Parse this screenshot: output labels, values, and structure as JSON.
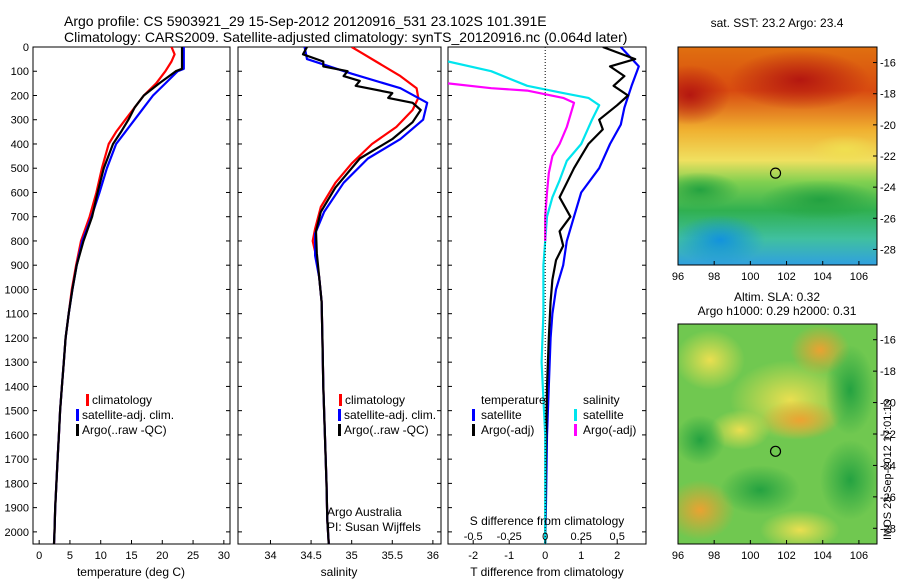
{
  "header": {
    "line1": "Argo profile: CS 5903921_29 15-Sep-2012 20120916_531 23.102S 101.391E",
    "line2": "Climatology: CARS2009. Satellite-adjusted climatology: synTS_20120916.nc (0.064d later)"
  },
  "colors": {
    "climatology": "#ff0000",
    "satellite": "#0000ff",
    "argo": "#000000",
    "argo_salinity": "#ff00ff",
    "satellite_salinity": "#00e5ee"
  },
  "depth_axis": {
    "ticks": [
      0,
      100,
      200,
      300,
      400,
      500,
      600,
      700,
      800,
      900,
      1000,
      1100,
      1200,
      1300,
      1400,
      1500,
      1600,
      1700,
      1800,
      1900,
      2000
    ],
    "range": [
      0,
      2050
    ],
    "reversed": true
  },
  "chart_data": [
    {
      "type": "line",
      "id": "temperature",
      "xlabel": "temperature (deg C)",
      "xlim": [
        -1,
        31
      ],
      "xticks": [
        0,
        5,
        10,
        15,
        20,
        25,
        30
      ],
      "legend": [
        "climatology",
        "satellite-adj. clim.",
        "Argo(..raw -QC)"
      ],
      "series": [
        {
          "name": "climatology",
          "color": "#ff0000",
          "points": [
            [
              21.5,
              0
            ],
            [
              22,
              30
            ],
            [
              21.5,
              60
            ],
            [
              20.5,
              100
            ],
            [
              19,
              150
            ],
            [
              17,
              200
            ],
            [
              15.5,
              250
            ],
            [
              14,
              300
            ],
            [
              12.5,
              350
            ],
            [
              11.3,
              400
            ],
            [
              10.2,
              500
            ],
            [
              9.3,
              600
            ],
            [
              8.2,
              700
            ],
            [
              6.8,
              800
            ],
            [
              6.0,
              900
            ],
            [
              5.3,
              1000
            ],
            [
              4.8,
              1100
            ],
            [
              4.3,
              1200
            ],
            [
              4.0,
              1300
            ],
            [
              3.7,
              1400
            ],
            [
              3.4,
              1500
            ],
            [
              3.2,
              1600
            ],
            [
              3.0,
              1700
            ],
            [
              2.8,
              1800
            ],
            [
              2.6,
              1900
            ],
            [
              2.5,
              2000
            ],
            [
              2.4,
              2060
            ]
          ]
        },
        {
          "name": "satellite-adj. clim.",
          "color": "#0000ff",
          "points": [
            [
              23.5,
              0
            ],
            [
              23.5,
              90
            ],
            [
              22.5,
              100
            ],
            [
              20.5,
              150
            ],
            [
              18.5,
              200
            ],
            [
              17,
              250
            ],
            [
              15.5,
              300
            ],
            [
              14,
              350
            ],
            [
              12.5,
              400
            ],
            [
              11,
              500
            ],
            [
              9.8,
              600
            ],
            [
              8.5,
              700
            ],
            [
              7,
              800
            ],
            [
              6.1,
              900
            ],
            [
              5.4,
              1000
            ],
            [
              4.8,
              1100
            ],
            [
              4.3,
              1200
            ],
            [
              4.0,
              1300
            ],
            [
              3.7,
              1400
            ],
            [
              3.4,
              1500
            ],
            [
              3.2,
              1600
            ],
            [
              3.0,
              1700
            ],
            [
              2.8,
              1800
            ],
            [
              2.6,
              1900
            ],
            [
              2.5,
              2000
            ],
            [
              2.4,
              2060
            ]
          ]
        },
        {
          "name": "Argo(..raw -QC)",
          "color": "#000000",
          "points": [
            [
              23.2,
              0
            ],
            [
              23.2,
              90
            ],
            [
              22.2,
              100
            ],
            [
              19.5,
              150
            ],
            [
              17,
              200
            ],
            [
              15.5,
              250
            ],
            [
              14.5,
              300
            ],
            [
              13.3,
              350
            ],
            [
              12,
              400
            ],
            [
              10.5,
              500
            ],
            [
              9.5,
              600
            ],
            [
              8.6,
              700
            ],
            [
              7.2,
              800
            ],
            [
              6.1,
              900
            ],
            [
              5.4,
              1000
            ],
            [
              4.8,
              1100
            ],
            [
              4.3,
              1200
            ],
            [
              4.0,
              1300
            ],
            [
              3.7,
              1400
            ],
            [
              3.4,
              1500
            ],
            [
              3.2,
              1600
            ],
            [
              3.0,
              1700
            ],
            [
              2.8,
              1800
            ],
            [
              2.6,
              1900
            ],
            [
              2.5,
              2000
            ],
            [
              2.4,
              2060
            ]
          ]
        }
      ]
    },
    {
      "type": "line",
      "id": "salinity",
      "xlabel": "salinity",
      "xlim": [
        33.6,
        36.1
      ],
      "xticks": [
        34,
        34.5,
        35,
        35.5,
        36
      ],
      "legend": [
        "climatology",
        "satellite-adj. clim.",
        "Argo(..raw -QC)"
      ],
      "annotation": [
        "Argo Australia",
        "PI: Susan Wijffels"
      ],
      "series": [
        {
          "name": "climatology",
          "color": "#ff0000",
          "points": [
            [
              35.0,
              0
            ],
            [
              35.1,
              20
            ],
            [
              35.3,
              60
            ],
            [
              35.6,
              120
            ],
            [
              35.8,
              170
            ],
            [
              35.82,
              210
            ],
            [
              35.75,
              260
            ],
            [
              35.55,
              330
            ],
            [
              35.25,
              400
            ],
            [
              35.0,
              480
            ],
            [
              34.8,
              560
            ],
            [
              34.62,
              660
            ],
            [
              34.55,
              750
            ],
            [
              34.52,
              800
            ],
            [
              34.56,
              860
            ],
            [
              34.6,
              950
            ],
            [
              34.63,
              1050
            ],
            [
              34.64,
              1200
            ],
            [
              34.65,
              1400
            ],
            [
              34.67,
              1600
            ],
            [
              34.69,
              1800
            ],
            [
              34.7,
              1950
            ],
            [
              34.72,
              2060
            ]
          ]
        },
        {
          "name": "satellite-adj. clim.",
          "color": "#0000ff",
          "points": [
            [
              34.42,
              0
            ],
            [
              34.45,
              50
            ],
            [
              35.0,
              110
            ],
            [
              35.6,
              170
            ],
            [
              35.93,
              230
            ],
            [
              35.88,
              300
            ],
            [
              35.6,
              380
            ],
            [
              35.2,
              460
            ],
            [
              34.9,
              560
            ],
            [
              34.66,
              680
            ],
            [
              34.55,
              770
            ],
            [
              34.55,
              860
            ],
            [
              34.6,
              950
            ],
            [
              34.63,
              1050
            ],
            [
              34.64,
              1200
            ],
            [
              34.65,
              1400
            ],
            [
              34.67,
              1600
            ],
            [
              34.69,
              1800
            ],
            [
              34.7,
              1950
            ],
            [
              34.72,
              2060
            ]
          ]
        },
        {
          "name": "Argo(..raw -QC)",
          "color": "#000000",
          "points": [
            [
              34.45,
              0
            ],
            [
              34.4,
              30
            ],
            [
              34.65,
              60
            ],
            [
              34.65,
              80
            ],
            [
              34.95,
              100
            ],
            [
              34.9,
              120
            ],
            [
              35.1,
              140
            ],
            [
              35.05,
              160
            ],
            [
              35.5,
              190
            ],
            [
              35.45,
              210
            ],
            [
              35.75,
              230
            ],
            [
              35.85,
              260
            ],
            [
              35.75,
              310
            ],
            [
              35.5,
              380
            ],
            [
              35.1,
              460
            ],
            [
              34.8,
              580
            ],
            [
              34.62,
              680
            ],
            [
              34.56,
              760
            ],
            [
              34.57,
              850
            ],
            [
              34.6,
              950
            ],
            [
              34.63,
              1050
            ],
            [
              34.64,
              1200
            ],
            [
              34.65,
              1400
            ],
            [
              34.67,
              1600
            ],
            [
              34.69,
              1800
            ],
            [
              34.7,
              1950
            ],
            [
              34.72,
              2060
            ]
          ]
        }
      ]
    },
    {
      "type": "line",
      "id": "difference",
      "xlabel_bottom": "T difference from climatology",
      "xlabel_top": "S difference from climatology",
      "xlim": [
        -2.7,
        2.8
      ],
      "xticks_T": [
        -2,
        -1,
        0,
        1,
        2
      ],
      "xticks_S": [
        -0.5,
        -0.25,
        0,
        0.25,
        0.5
      ],
      "legend_groups": [
        {
          "title": "temperature",
          "items": [
            "satellite",
            "Argo(-adj)"
          ]
        },
        {
          "title": "salinity",
          "items": [
            "satellite",
            "Argo(-adj)"
          ]
        }
      ],
      "series": [
        {
          "name": "temperature satellite",
          "color": "#0000ff",
          "points": [
            [
              2.1,
              0
            ],
            [
              2.6,
              80
            ],
            [
              2.4,
              160
            ],
            [
              2.2,
              250
            ],
            [
              2.1,
              320
            ],
            [
              1.8,
              400
            ],
            [
              1.5,
              500
            ],
            [
              1.0,
              600
            ],
            [
              0.8,
              700
            ],
            [
              0.6,
              800
            ],
            [
              0.5,
              900
            ],
            [
              0.3,
              1000
            ],
            [
              0.2,
              1100
            ],
            [
              0.15,
              1200
            ],
            [
              0.1,
              1400
            ],
            [
              0.05,
              1600
            ],
            [
              0.02,
              1900
            ],
            [
              0,
              2050
            ]
          ]
        },
        {
          "name": "temperature Argo(-adj)",
          "color": "#000000",
          "points": [
            [
              1.6,
              0
            ],
            [
              2.5,
              50
            ],
            [
              1.8,
              80
            ],
            [
              2.2,
              120
            ],
            [
              1.9,
              160
            ],
            [
              2.3,
              200
            ],
            [
              2.0,
              240
            ],
            [
              1.5,
              300
            ],
            [
              1.6,
              340
            ],
            [
              1.2,
              400
            ],
            [
              1.0,
              450
            ],
            [
              0.8,
              500
            ],
            [
              0.6,
              560
            ],
            [
              0.4,
              620
            ],
            [
              0.7,
              700
            ],
            [
              0.4,
              760
            ],
            [
              0.5,
              820
            ],
            [
              0.3,
              880
            ],
            [
              0.2,
              960
            ],
            [
              0.15,
              1050
            ],
            [
              0.1,
              1200
            ],
            [
              0.05,
              1400
            ],
            [
              0.02,
              1700
            ],
            [
              0,
              2050
            ]
          ]
        },
        {
          "name": "salinity satellite",
          "color": "#00e5ee",
          "points": [
            [
              -2.7,
              60
            ],
            [
              -1.5,
              100
            ],
            [
              -0.5,
              160
            ],
            [
              0.5,
              190
            ],
            [
              1.2,
              210
            ],
            [
              1.5,
              240
            ],
            [
              1.3,
              300
            ],
            [
              1.0,
              400
            ],
            [
              0.6,
              470
            ],
            [
              0.4,
              550
            ],
            [
              0.2,
              620
            ],
            [
              0.05,
              700
            ],
            [
              0,
              800
            ],
            [
              -0.05,
              900
            ],
            [
              -0.05,
              1100
            ],
            [
              -0.1,
              1300
            ],
            [
              0,
              1600
            ],
            [
              0,
              2050
            ]
          ]
        },
        {
          "name": "salinity Argo(-adj)",
          "color": "#ff00ff",
          "points": [
            [
              -2.7,
              150
            ],
            [
              -1.5,
              170
            ],
            [
              -0.5,
              180
            ],
            [
              0.5,
              210
            ],
            [
              0.8,
              230
            ],
            [
              0.7,
              280
            ],
            [
              0.6,
              330
            ],
            [
              0.4,
              400
            ],
            [
              0.2,
              450
            ],
            [
              0.1,
              520
            ],
            [
              0.05,
              600
            ],
            [
              0,
              700
            ],
            [
              0,
              800
            ]
          ]
        }
      ]
    },
    {
      "type": "heatmap",
      "id": "sst_map",
      "title": "sat. SST: 23.2  Argo: 23.4",
      "xticks": [
        96,
        98,
        100,
        102,
        104,
        106
      ],
      "yticks": [
        -16,
        -18,
        -20,
        -22,
        -24,
        -26,
        -28
      ],
      "xlim": [
        96,
        107
      ],
      "ylim": [
        -29,
        -15
      ],
      "marker": {
        "lon": 101.391,
        "lat": -23.102
      }
    },
    {
      "type": "heatmap",
      "id": "sla_map",
      "title_line1": "Altim. SLA: 0.32",
      "title_line2": "Argo h1000: 0.29  h2000: 0.31",
      "xticks": [
        96,
        98,
        100,
        102,
        104,
        106
      ],
      "yticks": [
        -16,
        -18,
        -20,
        -22,
        -24,
        -26,
        -28
      ],
      "xlim": [
        96,
        107
      ],
      "ylim": [
        -29,
        -15
      ],
      "marker": {
        "lon": 101.391,
        "lat": -23.102
      }
    }
  ],
  "footer": {
    "side_stamp": "IMOS 23-Sep-2012 17:01:13"
  }
}
